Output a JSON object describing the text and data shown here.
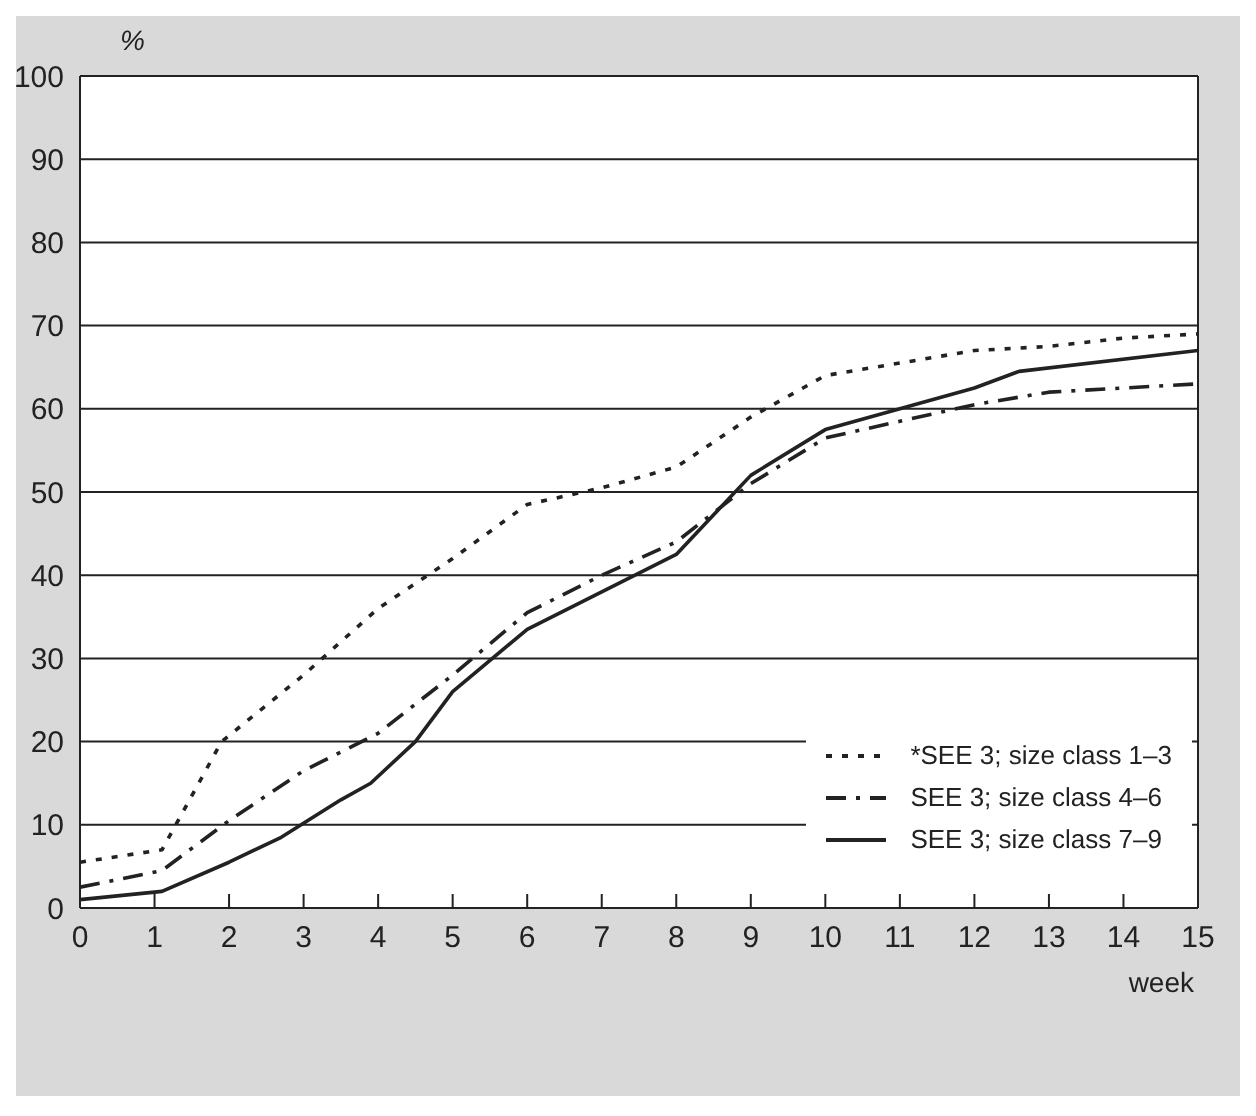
{
  "chart_data": {
    "type": "line",
    "ylabel": "%",
    "xlabel": "week",
    "xlim": [
      0,
      15
    ],
    "xticks": [
      0,
      1,
      2,
      3,
      4,
      5,
      6,
      7,
      8,
      9,
      10,
      11,
      12,
      13,
      14,
      15
    ],
    "ylim": [
      0,
      100
    ],
    "yticks": [
      0,
      10,
      20,
      30,
      40,
      50,
      60,
      70,
      80,
      90,
      100
    ],
    "grid": "y",
    "legend": "bottom right",
    "marker": "none",
    "series": [
      {
        "name": "*SEE 3; size class 1–3",
        "color": "#222222",
        "line_style": "dotted",
        "x": [
          0,
          1.1,
          1.9,
          3,
          4,
          5,
          6,
          7,
          8,
          9,
          10,
          11,
          12,
          13,
          14,
          15
        ],
        "values": [
          5.5,
          7,
          20,
          28,
          36,
          42,
          48.5,
          50.5,
          53,
          59,
          64,
          65.5,
          67,
          67.5,
          68.5,
          69
        ]
      },
      {
        "name": "SEE 3; size class 4–6",
        "color": "#222222",
        "line_style": "dashdot",
        "x": [
          0,
          1.1,
          2,
          3,
          4,
          5,
          6,
          7,
          8,
          9,
          10,
          11,
          12,
          13,
          14,
          15
        ],
        "values": [
          2.5,
          4.5,
          10.5,
          16.5,
          21,
          28,
          35.5,
          40,
          44,
          51,
          56.5,
          58.5,
          60.5,
          62,
          62.5,
          63
        ]
      },
      {
        "name": "SEE 3; size class 7–9",
        "color": "#222222",
        "line_style": "solid",
        "x": [
          0,
          1.1,
          2,
          2.7,
          3.5,
          3.9,
          4.5,
          5,
          6,
          7,
          8,
          9,
          10,
          11,
          12,
          12.6,
          15
        ],
        "values": [
          1,
          2,
          5.5,
          8.5,
          13,
          15,
          20,
          26,
          33.5,
          38,
          42.5,
          52,
          57.5,
          60,
          62.5,
          64.5,
          67
        ]
      }
    ]
  }
}
